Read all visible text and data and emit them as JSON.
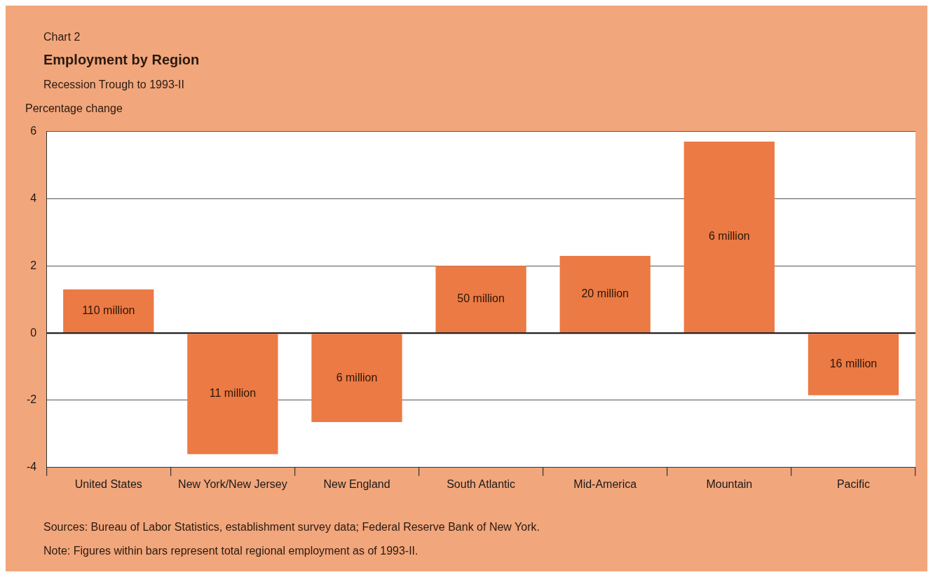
{
  "chart_data": {
    "type": "bar",
    "title": "Employment by Region",
    "subtitle": "Recession Trough to 1993-II",
    "ylabel": "Percentage change",
    "categories": [
      "United States",
      "New York/New Jersey",
      "New England",
      "South Atlantic",
      "Mid-America",
      "Mountain",
      "Pacific"
    ],
    "values": [
      1.3,
      -3.6,
      -2.65,
      2.0,
      2.3,
      5.7,
      -1.85
    ],
    "color": "#ec7a44",
    "ylim": [
      -4,
      6
    ],
    "yticks": [
      -4,
      -2,
      0,
      2,
      4,
      6
    ],
    "grid": "y",
    "legend": false,
    "annotations": [
      "Chart 2",
      "110 million",
      "11 million",
      "6 million",
      "50 million",
      "20 million",
      "6 million",
      "16 million",
      "Sources:  Bureau of Labor Statistics, establishment survey data; Federal Reserve Bank of New York.",
      "Note:  Figures within bars represent total regional employment as of 1993-II."
    ]
  }
}
